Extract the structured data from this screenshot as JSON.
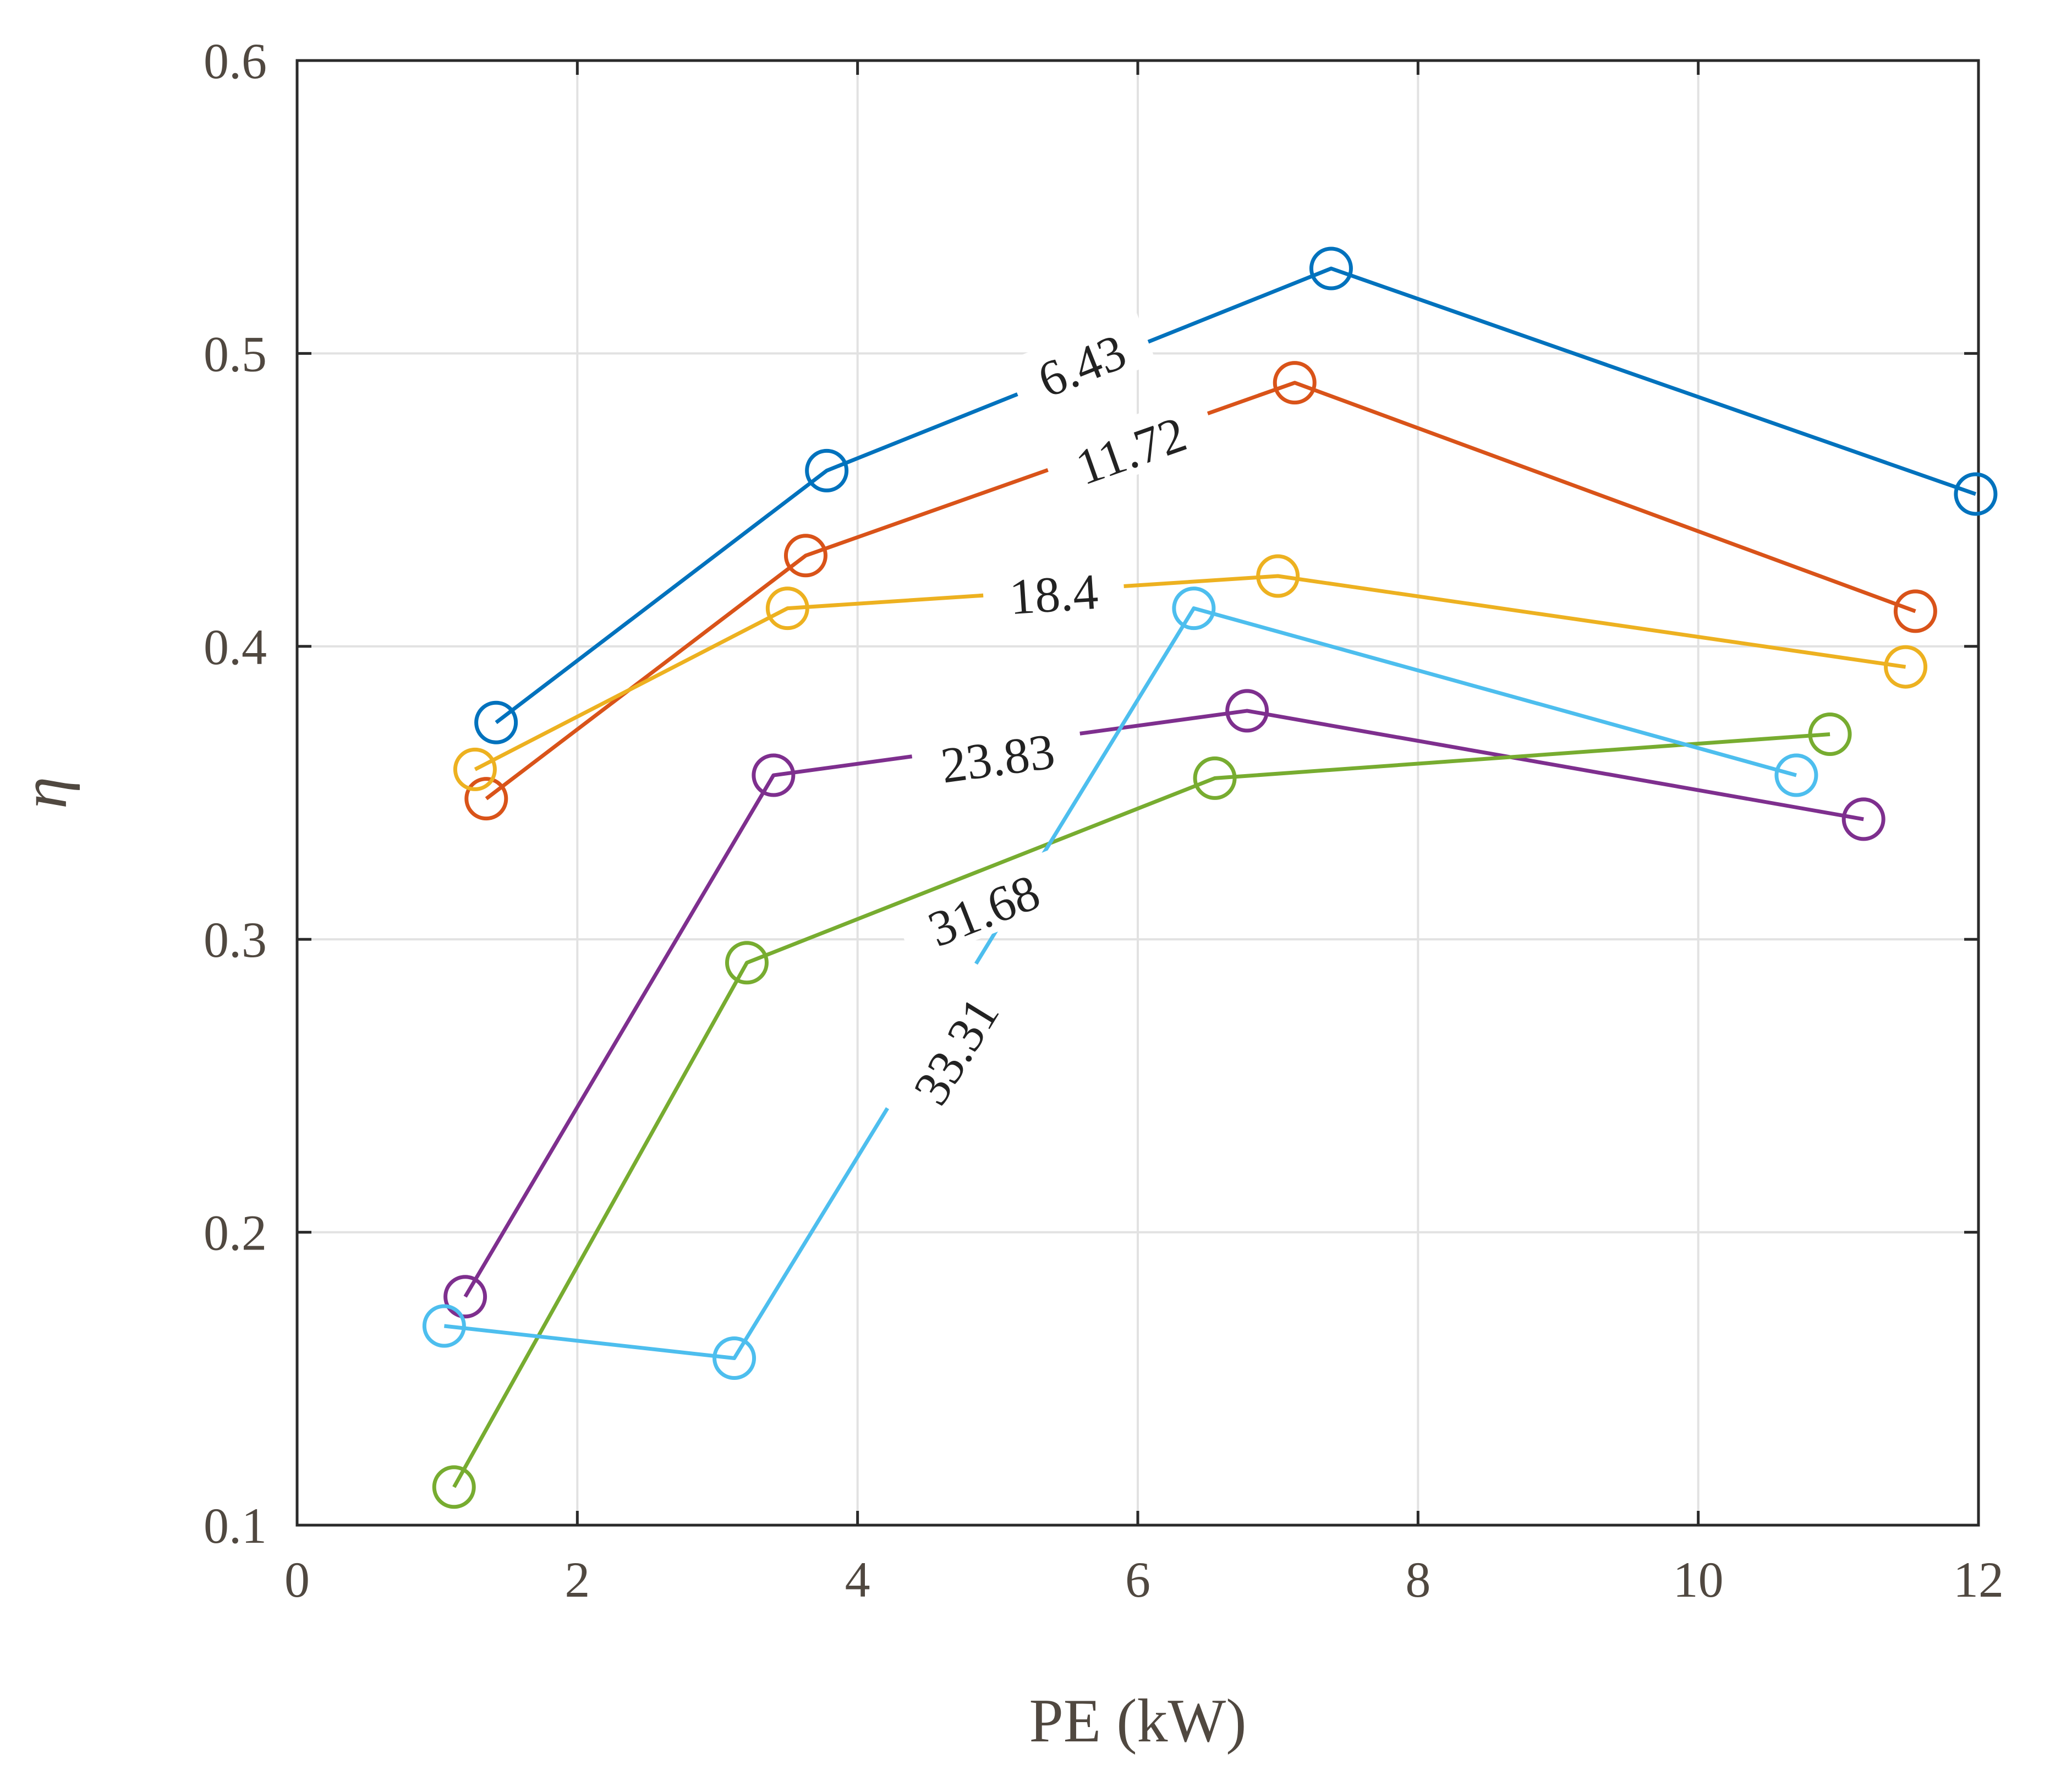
{
  "chart_data": {
    "type": "line",
    "xlabel": "PE (kW)",
    "ylabel": "η",
    "xlim": [
      0,
      12
    ],
    "ylim": [
      0.1,
      0.6
    ],
    "xticks": [
      0,
      2,
      4,
      6,
      8,
      10,
      12
    ],
    "yticks": [
      0.1,
      0.2,
      0.3,
      0.4,
      0.5,
      0.6
    ],
    "xtick_labels": [
      "0",
      "2",
      "4",
      "6",
      "8",
      "10",
      "12"
    ],
    "ytick_labels": [
      "0.1",
      "0.2",
      "0.3",
      "0.4",
      "0.5",
      "0.6"
    ],
    "grid": true,
    "marker": "circle-open",
    "series": [
      {
        "name": "6.43",
        "color": "#0072BD",
        "x": [
          1.42,
          3.78,
          7.38,
          11.98
        ],
        "y": [
          0.374,
          0.46,
          0.529,
          0.452
        ],
        "label_at": [
          5.6,
          0.496
        ]
      },
      {
        "name": "11.72",
        "color": "#D95319",
        "x": [
          1.35,
          3.63,
          7.12,
          11.55
        ],
        "y": [
          0.348,
          0.431,
          0.49,
          0.412
        ],
        "label_at": [
          5.95,
          0.467
        ]
      },
      {
        "name": "18.4",
        "color": "#EDB120",
        "x": [
          1.27,
          3.5,
          7.0,
          11.48
        ],
        "y": [
          0.358,
          0.413,
          0.424,
          0.393
        ],
        "label_at": [
          5.4,
          0.418
        ]
      },
      {
        "name": "23.83",
        "color": "#7E2F8E",
        "x": [
          1.2,
          3.4,
          6.78,
          11.18
        ],
        "y": [
          0.178,
          0.356,
          0.378,
          0.341
        ],
        "label_at": [
          5.0,
          0.362
        ]
      },
      {
        "name": "31.68",
        "color": "#77AC30",
        "x": [
          1.12,
          3.21,
          6.55,
          10.94
        ],
        "y": [
          0.113,
          0.292,
          0.355,
          0.37
        ],
        "label_at": [
          4.9,
          0.31
        ]
      },
      {
        "name": "33.31",
        "color": "#4DBEEE",
        "x": [
          1.05,
          3.12,
          6.4,
          10.7
        ],
        "y": [
          0.168,
          0.157,
          0.413,
          0.356
        ],
        "label_at": [
          4.7,
          0.262
        ]
      }
    ]
  }
}
